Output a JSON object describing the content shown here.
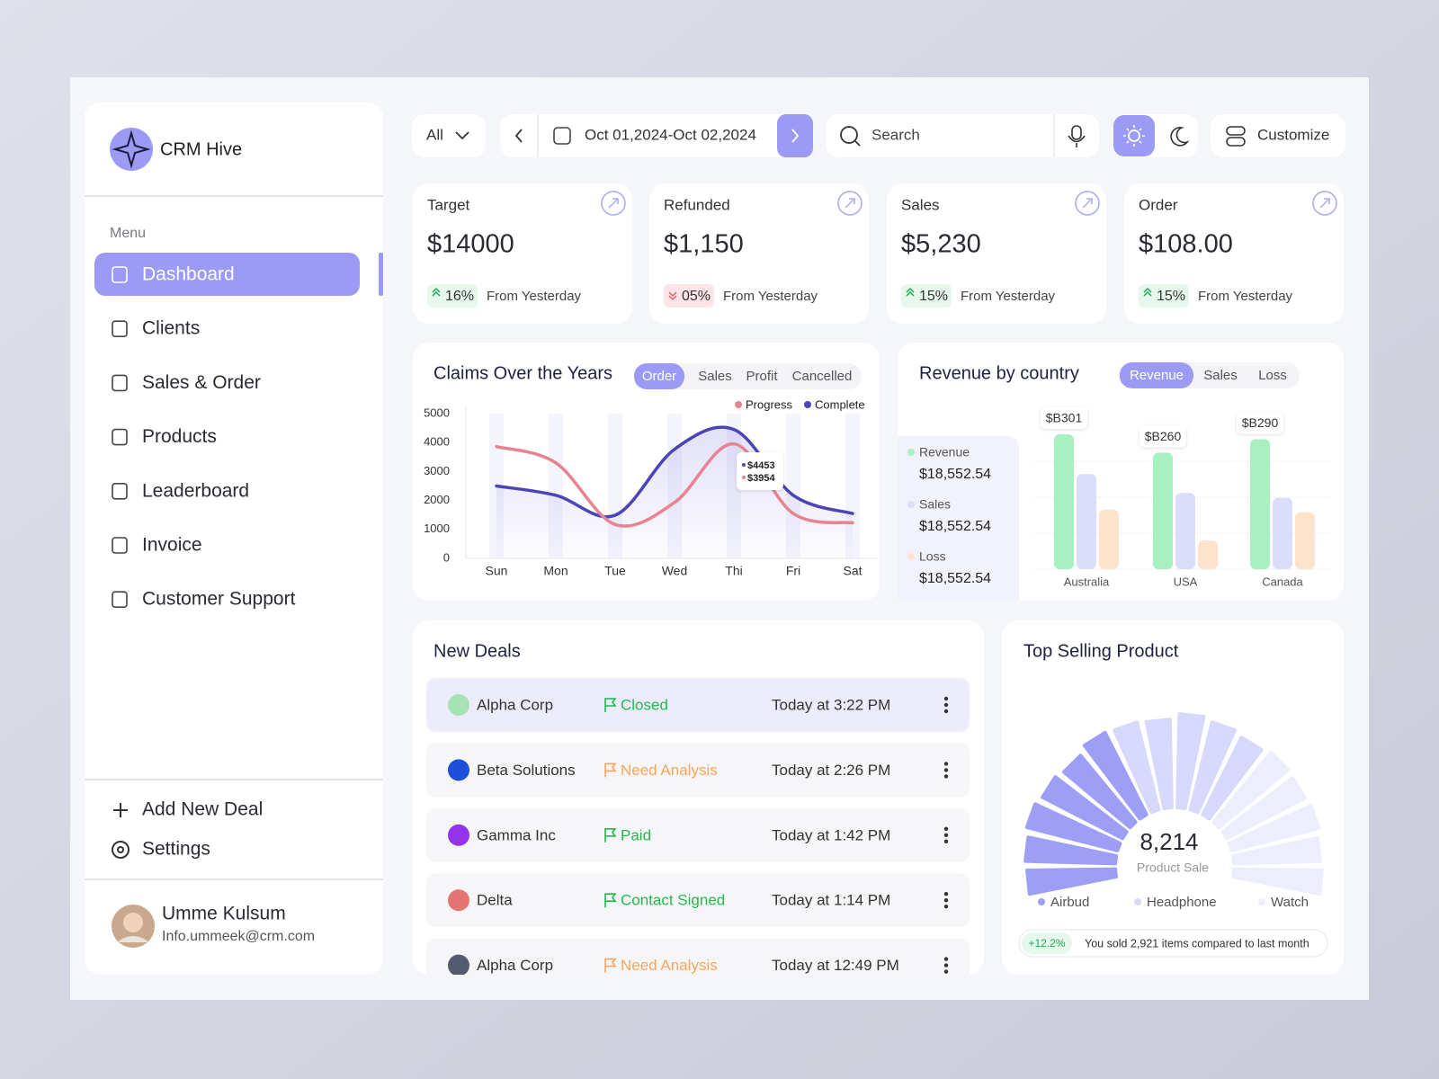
{
  "brand": "CRM Hive",
  "toolbar": {
    "filter": "All",
    "date_range": "Oct 01,2024-Oct 02,2024",
    "search": "Search",
    "customize": "Customize"
  },
  "menu_label": "Menu",
  "menu": [
    "Dashboard",
    "Clients",
    "Sales & Order",
    "Products",
    "Leaderboard",
    "Invoice",
    "Customer Support"
  ],
  "active_menu": 0,
  "actions": [
    "Add New Deal",
    "Settings"
  ],
  "user": {
    "name": "Umme Kulsum",
    "email": "Info.ummeek@crm.com"
  },
  "stats": [
    {
      "label": "Target",
      "value": "$14000",
      "change": "16%",
      "note": "From Yesterday",
      "trend": "up"
    },
    {
      "label": "Refunded",
      "value": "$1,150",
      "change": "05%",
      "note": "From Yesterday",
      "trend": "down"
    },
    {
      "label": "Sales",
      "value": "$5,230",
      "change": "15%",
      "note": "From Yesterday",
      "trend": "up"
    },
    {
      "label": "Order",
      "value": "$108.00",
      "change": "15%",
      "note": "From Yesterday",
      "trend": "up"
    }
  ],
  "chart_data": [
    {
      "type": "line",
      "title": "Claims Over the Years",
      "tabs": [
        "Order",
        "Sales",
        "Profit",
        "Cancelled"
      ],
      "active_tab": 0,
      "categories": [
        "Sun",
        "Mon",
        "Tue",
        "Wed",
        "Thi",
        "Fri",
        "Sat"
      ],
      "series": [
        {
          "name": "Progress",
          "color": "#e8838f",
          "values": [
            3860,
            3300,
            1170,
            1930,
            3954,
            1550,
            1230
          ],
          "value_labels": [
            null,
            null,
            null,
            null,
            "$3954",
            null,
            null
          ]
        },
        {
          "name": "Complete",
          "color": "#4b44b5",
          "values": [
            2500,
            2180,
            1490,
            3770,
            4453,
            2180,
            1550
          ],
          "value_labels": [
            null,
            null,
            null,
            null,
            "$4453",
            null,
            null
          ]
        }
      ],
      "ylim": [
        0,
        5000
      ],
      "yticks": [
        0,
        1000,
        2000,
        3000,
        4000,
        5000
      ],
      "grid": false
    },
    {
      "type": "bar",
      "title": "Revenue by country",
      "tabs": [
        "Revenue",
        "Sales",
        "Loss"
      ],
      "active_tab": 0,
      "categories": [
        "Australia",
        "USA",
        "Canada"
      ],
      "series": [
        {
          "name": "Revenue",
          "color": "#a8f0c0",
          "total": "$18,552.54",
          "values": [
            301,
            260,
            290
          ],
          "value_labels": [
            "$B301",
            "$B260",
            "$B290"
          ]
        },
        {
          "name": "Sales",
          "color": "#dcdcfb",
          "total": "$18,552.54",
          "values": [
            212,
            170,
            159
          ]
        },
        {
          "name": "Loss",
          "color": "#fde3cb",
          "total": "$18,552.54",
          "values": [
            133,
            64,
            127
          ]
        }
      ]
    },
    {
      "type": "radial-bar",
      "title": "Top Selling Product",
      "center_value": "8,214",
      "center_label": "Product Sale",
      "series": [
        {
          "name": "Airbud",
          "color": "#9d9ef6",
          "values": [
            98,
            100,
            104,
            100,
            96,
            102
          ]
        },
        {
          "name": "Headphone",
          "color": "#d6d8fc",
          "values": [
            100,
            98,
            104,
            100,
            96
          ]
        },
        {
          "name": "Watch",
          "color": "#eceefe",
          "values": [
            100,
            98,
            100,
            96,
            98
          ]
        }
      ],
      "note_badge": "+12.2%",
      "note": "You sold 2,921 items compared to last month"
    }
  ],
  "deals": {
    "title": "New Deals",
    "rows": [
      {
        "company": "Alpha Corp",
        "status": "Closed",
        "tone": "positive",
        "time": "Today at 3:22 PM",
        "logo_color": "#a7e3b5"
      },
      {
        "company": "Beta Solutions",
        "status": "Need Analysis",
        "tone": "pending",
        "time": "Today at 2:26 PM",
        "logo_color": "#1d4ed8"
      },
      {
        "company": "Gamma Inc",
        "status": "Paid",
        "tone": "positive",
        "time": "Today at 1:42 PM",
        "logo_color": "#9333ea"
      },
      {
        "company": "Delta",
        "status": "Contact Signed",
        "tone": "positive",
        "time": "Today at 1:14 PM",
        "logo_color": "#e57373"
      },
      {
        "company": "Alpha Corp",
        "status": "Need Analysis",
        "tone": "pending",
        "time": "Today at 12:49 PM",
        "logo_color": "#555b6e"
      }
    ]
  }
}
